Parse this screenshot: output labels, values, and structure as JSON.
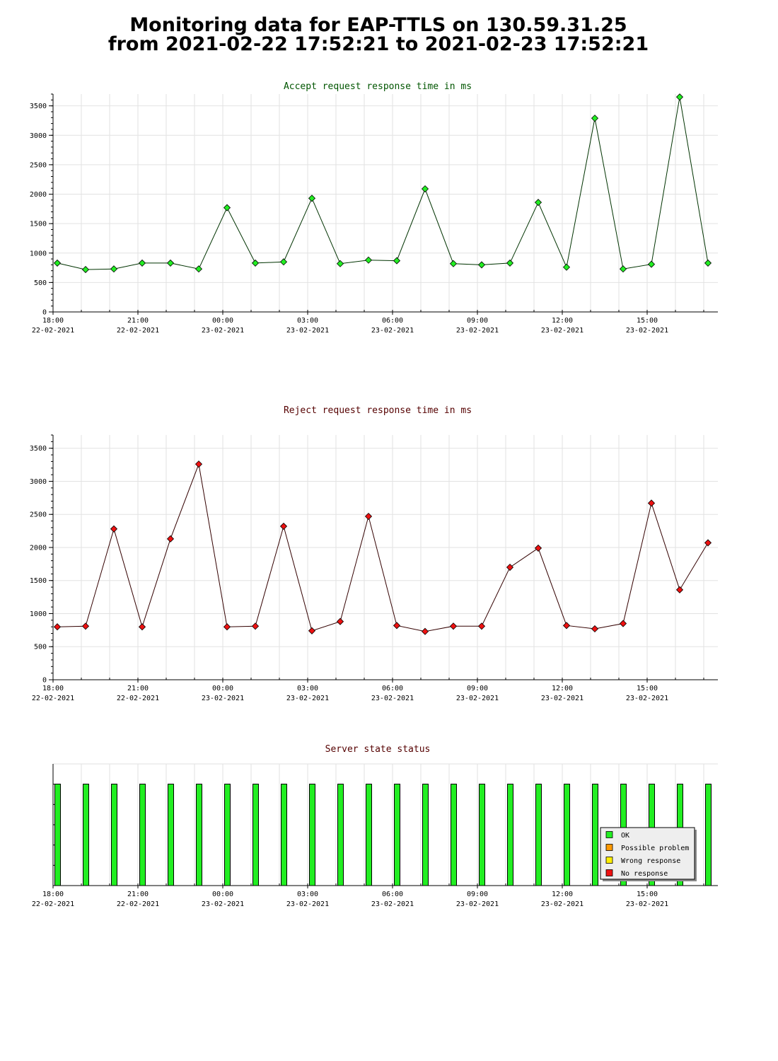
{
  "page": {
    "title_line1": "Monitoring data for EAP-TTLS on 130.59.31.25",
    "title_line2": "from 2021-02-22 17:52:21 to 2021-02-23 17:52:21"
  },
  "x_ticks": [
    {
      "time": "18:00",
      "date": "22-02-2021"
    },
    {
      "time": "21:00",
      "date": "22-02-2021"
    },
    {
      "time": "00:00",
      "date": "23-02-2021"
    },
    {
      "time": "03:00",
      "date": "23-02-2021"
    },
    {
      "time": "06:00",
      "date": "23-02-2021"
    },
    {
      "time": "09:00",
      "date": "23-02-2021"
    },
    {
      "time": "12:00",
      "date": "23-02-2021"
    },
    {
      "time": "15:00",
      "date": "23-02-2021"
    }
  ],
  "x_times": [
    "18:00",
    "19:00",
    "20:00",
    "21:00",
    "22:00",
    "23:00",
    "00:00",
    "01:00",
    "02:00",
    "03:00",
    "04:00",
    "05:00",
    "06:00",
    "07:00",
    "08:00",
    "09:00",
    "10:00",
    "11:00",
    "12:00",
    "13:00",
    "14:00",
    "15:00",
    "16:00",
    "17:00"
  ],
  "chart_data": [
    {
      "type": "line",
      "title": "Accept request response time in ms",
      "title_color": "#005500",
      "line_color": "#003300",
      "marker_color": "#22ee22",
      "yticks": [
        0,
        500,
        1000,
        1500,
        2000,
        2500,
        3000,
        3500
      ],
      "ylim": [
        0,
        3700
      ],
      "grid": true,
      "values": [
        830,
        720,
        730,
        830,
        830,
        730,
        1770,
        830,
        850,
        1930,
        820,
        880,
        870,
        2090,
        820,
        800,
        830,
        1860,
        760,
        3290,
        730,
        810,
        3650,
        830
      ]
    },
    {
      "type": "line",
      "title": "Reject request response time in ms",
      "title_color": "#550000",
      "line_color": "#330000",
      "marker_color": "#ee1111",
      "yticks": [
        0,
        500,
        1000,
        1500,
        2000,
        2500,
        3000,
        3500
      ],
      "ylim": [
        0,
        3700
      ],
      "grid": true,
      "values": [
        800,
        810,
        2280,
        800,
        2130,
        3260,
        800,
        810,
        2320,
        740,
        880,
        2470,
        820,
        730,
        810,
        810,
        1700,
        1990,
        820,
        770,
        850,
        2670,
        1360,
        2070
      ]
    },
    {
      "type": "bar",
      "title": "Server state status",
      "title_color": "#550000",
      "grid": true,
      "legend": {
        "position": "bottom-right",
        "items": [
          {
            "label": "OK",
            "color": "#22ee22"
          },
          {
            "label": "Possible problem",
            "color": "#ff9900"
          },
          {
            "label": "Wrong response",
            "color": "#ffee00"
          },
          {
            "label": "No response",
            "color": "#ee1111"
          }
        ]
      },
      "values": [
        "OK",
        "OK",
        "OK",
        "OK",
        "OK",
        "OK",
        "OK",
        "OK",
        "OK",
        "OK",
        "OK",
        "OK",
        "OK",
        "OK",
        "OK",
        "OK",
        "OK",
        "OK",
        "OK",
        "OK",
        "OK",
        "OK",
        "OK",
        "OK"
      ]
    }
  ]
}
